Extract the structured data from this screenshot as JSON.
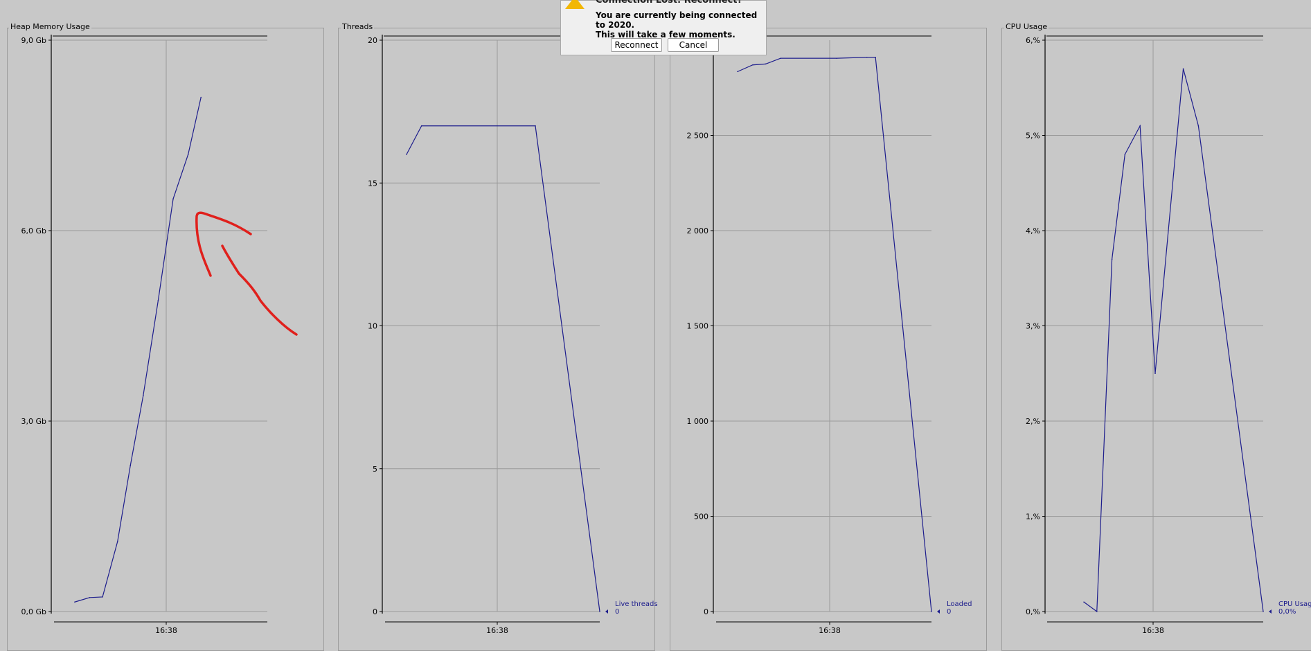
{
  "dialog": {
    "title": "Connection Lost: Reconnect?",
    "message_line1": "You are currently being connected to 2020.",
    "message_line2": "This will take a few moments.",
    "reconnect_label": "Reconnect",
    "cancel_label": "Cancel"
  },
  "colors": {
    "line": "#1c1c8c",
    "annotation": "#e0201c",
    "grid": "#9a9a9a",
    "background": "#c8c8c8"
  },
  "chart_data": [
    {
      "type": "line",
      "title": "Heap Memory Usage",
      "x_tick_labels": [
        "16:38"
      ],
      "y_tick_labels": [
        "0,0 Gb",
        "3,0 Gb",
        "6,0 Gb",
        "9,0 Gb"
      ],
      "ylim": [
        0,
        9
      ],
      "y_unit": "Gb",
      "x": [
        0.1,
        0.17,
        0.23,
        0.3,
        0.36,
        0.42,
        0.49,
        0.56,
        0.63,
        0.69
      ],
      "series": [
        {
          "values": [
            0.15,
            0.22,
            0.23,
            1.1,
            2.3,
            3.4,
            4.9,
            6.5,
            7.2,
            8.1
          ]
        }
      ]
    },
    {
      "type": "line",
      "title": "Threads",
      "x_tick_labels": [
        "16:38"
      ],
      "y_tick_labels": [
        "0",
        "5",
        "10",
        "15",
        "20"
      ],
      "ylim": [
        0,
        20
      ],
      "x": [
        0.1,
        0.17,
        0.7,
        1.0
      ],
      "series": [
        {
          "name": "Live threads",
          "values": [
            16,
            17,
            17,
            0
          ]
        }
      ],
      "legend": {
        "label": "Live threads",
        "value": "0"
      }
    },
    {
      "type": "line",
      "title": "",
      "x_tick_labels": [
        "16:38"
      ],
      "y_tick_labels": [
        "0",
        "500",
        "1 000",
        "1 500",
        "2 000",
        "2 500"
      ],
      "ylim": [
        0,
        3000
      ],
      "x": [
        0.1,
        0.17,
        0.23,
        0.3,
        0.56,
        0.7,
        0.74,
        1.0
      ],
      "series": [
        {
          "name": "Loaded",
          "values": [
            2835,
            2870,
            2875,
            2905,
            2905,
            2910,
            2910,
            0
          ]
        }
      ],
      "legend": {
        "label": "Loaded",
        "value": "0"
      }
    },
    {
      "type": "line",
      "title": "CPU Usage",
      "x_tick_labels": [
        "16:38"
      ],
      "y_tick_labels": [
        "0,%",
        "1,%",
        "2,%",
        "3,%",
        "4,%",
        "5,%",
        "6,%"
      ],
      "ylim": [
        0,
        6
      ],
      "y_unit": "%",
      "x": [
        0.17,
        0.23,
        0.3,
        0.36,
        0.43,
        0.5,
        0.63,
        0.7,
        1.0
      ],
      "series": [
        {
          "name": "CPU Usage",
          "values": [
            0.1,
            0.0,
            3.7,
            4.8,
            5.1,
            2.5,
            5.7,
            5.1,
            0.0
          ]
        }
      ],
      "legend": {
        "label": "CPU Usage",
        "value": "0,0%"
      }
    }
  ]
}
